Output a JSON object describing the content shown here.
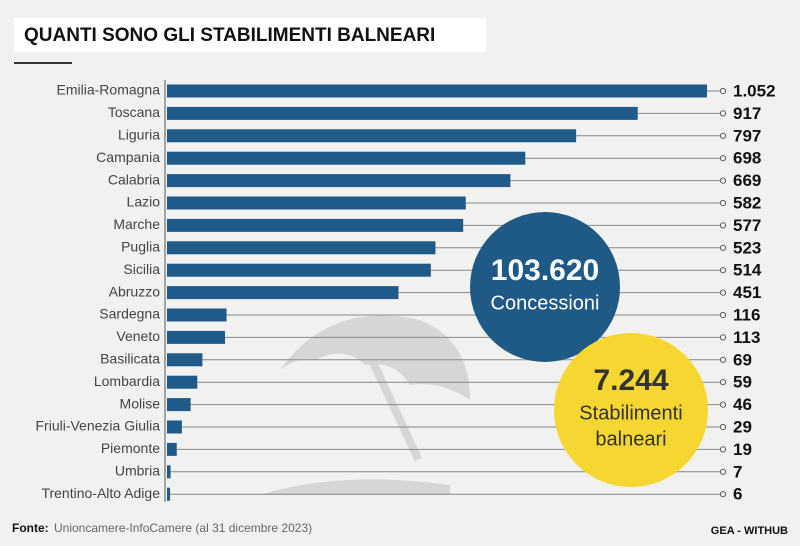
{
  "chart_data": {
    "type": "bar",
    "orientation": "horizontal",
    "title": "QUANTI SONO GLI STABILIMENTI BALNEARI",
    "categories": [
      "Emilia-Romagna",
      "Toscana",
      "Liguria",
      "Campania",
      "Calabria",
      "Lazio",
      "Marche",
      "Puglia",
      "Sicilia",
      "Abruzzo",
      "Sardegna",
      "Veneto",
      "Basilicata",
      "Lombardia",
      "Molise",
      "Friuli-Venezia Giulia",
      "Piemonte",
      "Umbria",
      "Trentino-Alto Adige"
    ],
    "values": [
      1052,
      917,
      797,
      698,
      669,
      582,
      577,
      523,
      514,
      451,
      116,
      113,
      69,
      59,
      46,
      29,
      19,
      7,
      6
    ],
    "value_labels": [
      "1.052",
      "917",
      "797",
      "698",
      "669",
      "582",
      "577",
      "523",
      "514",
      "451",
      "116",
      "113",
      "69",
      "59",
      "46",
      "29",
      "19",
      "7",
      "6"
    ],
    "color": "#1f5a89",
    "annotations": [
      {
        "value": "103.620",
        "label_lines": [
          "Concessioni"
        ],
        "color": "#1e5a85"
      },
      {
        "value": "7.244",
        "label_lines": [
          "Stabilimenti",
          "balneari"
        ],
        "color": "#f6d630"
      }
    ],
    "source_label": "Fonte:",
    "source": "Unioncamere-InfoCamere (al 31 dicembre 2023)",
    "credit": "GEA - WITHUB"
  }
}
